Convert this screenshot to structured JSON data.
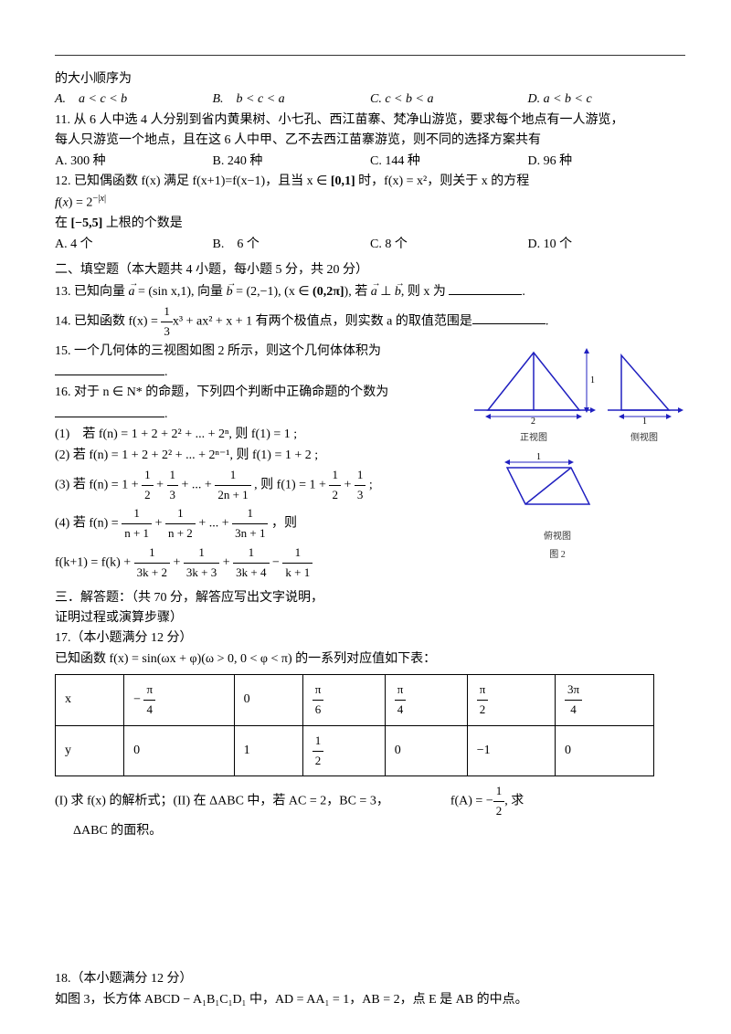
{
  "intro_line": "的大小顺序为",
  "q10": {
    "A": "A.　a < c < b",
    "B": "B.　b < c < a",
    "C": "C. c < b < a",
    "D": "D. a < b < c"
  },
  "q11": {
    "line1": "11. 从 6 人中选 4 人分别到省内黄果树、小七孔、西江苗寨、梵净山游览，要求每个地点有一人游览，",
    "line2": "每人只游览一个地点，且在这 6 人中甲、乙不去西江苗寨游览，则不同的选择方案共有",
    "A": "A. 300 种",
    "B": "B. 240 种",
    "C": "C. 144 种",
    "D": "D. 96 种"
  },
  "q12": {
    "line1_a": "12. 已知偶函数 f(x) 满足 f(x+1)=f(x−1)，且当 x ∈ ",
    "line1_b": "[0,1]",
    "line1_c": " 时，f(x) = x²，则关于 x 的方程",
    "line2": "f(x) = 2^(−|x|)",
    "line3_a": "在 ",
    "line3_b": "[−5,5]",
    "line3_c": " 上根的个数是",
    "A": "A. 4 个",
    "B": "B.　6 个",
    "C": "C. 8 个",
    "D": "D. 10 个"
  },
  "sec2": "二、填空题（本大题共 4 小题，每小题 5 分，共 20 分）",
  "q13": {
    "a": "13. 已知向量 ",
    "vec_a": "a",
    "p1": " = (sin x,1), 向量 ",
    "vec_b": "b",
    "p2": " = (2,−1), (x ∈ ",
    "interval": "(0,2π]",
    "p3": "), 若 ",
    "vec_a2": "a",
    "perp": " ⊥ ",
    "vec_b2": "b",
    "p4": ", 则 x 为 "
  },
  "q14": {
    "a": "14. 已知函数 f(x) = ",
    "f1n": "1",
    "f1d": "3",
    "b": "x³ + ax² + x + 1 有两个极值点，则实数 a 的取值范围是"
  },
  "q15": "15. 一个几何体的三视图如图 2 所示，则这个几何体体积为",
  "q16": {
    "head": "16. 对于 n ∈ N* 的命题，下列四个判断中正确命题的个数为",
    "s1": "(1)　若 f(n) = 1 + 2 + 2² + ... + 2ⁿ, 则 f(1) = 1 ;",
    "s2": "(2) 若 f(n) = 1 + 2 + 2² + ... + 2ⁿ⁻¹, 则 f(1) = 1 + 2 ;",
    "s3": {
      "a": "(3) 若 f(n) = 1 + ",
      "t": ", 则 f(1) = 1 + ",
      "end": " ;"
    },
    "s4": {
      "a": "(4) 若 f(n) = ",
      "t": "，则"
    },
    "s4b": {
      "a": "f(k+1) = f(k) + "
    }
  },
  "fractions": {
    "half_n": "1",
    "half_d": "2",
    "third_n": "1",
    "third_d": "3",
    "t2np1_n": "1",
    "t2np1_d": "2n + 1",
    "np1_n": "1",
    "np1_d": "n + 1",
    "np2_n": "1",
    "np2_d": "n + 2",
    "t3np1_n": "1",
    "t3np1_d": "3n + 1",
    "t3kp2_n": "1",
    "t3kp2_d": "3k + 2",
    "t3kp3_n": "1",
    "t3kp3_d": "3k + 3",
    "t3kp4_n": "1",
    "t3kp4_d": "3k + 4",
    "kp1_n": "1",
    "kp1_d": "k + 1"
  },
  "sec3": {
    "head": "三．解答题：（共 70 分，解答应写出文字说明，",
    "head2": "证明过程或演算步骤）",
    "q17h": "17.（本小题满分 12 分）",
    "q17l": "已知函数 f(x) = sin(ωx + φ)(ω > 0, 0 < φ < π) 的一系列对应值如下表：",
    "table": {
      "r1": [
        "x",
        "frac:-π:4",
        "0",
        "frac:π:6",
        "frac:π:4",
        "frac:π:2",
        "frac:3π:4"
      ],
      "r2": [
        "y",
        "0",
        "1",
        "frac:1:2",
        "0",
        "−1",
        "0"
      ]
    },
    "q17p1_a": "(I) 求 f(x) 的解析式；(II) 在 ΔABC 中，若 AC = 2，BC = 3，",
    "q17p1_b": "f(A) = −",
    "q17p1_c": ", 求",
    "q17p2": "ΔABC 的面积。"
  },
  "q18": {
    "h": "18.（本小题满分 12 分）",
    "l": "如图 3，长方体 ABCD − A₁B₁C₁D₁ 中，AD = AA₁ = 1，AB = 2，点 E 是 AB 的中点。"
  },
  "fig": {
    "label_front": "正视图",
    "label_side": "侧视图",
    "label_top": "俯视图",
    "caption": "图 2",
    "dim1": "1",
    "dim2": "2"
  }
}
